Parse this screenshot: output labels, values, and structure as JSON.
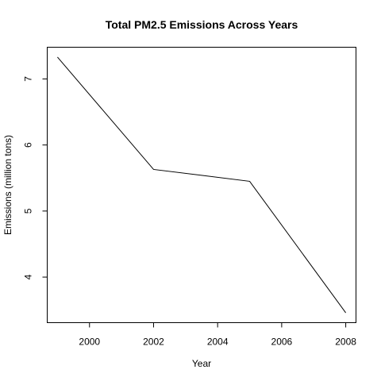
{
  "chart_data": {
    "type": "line",
    "title": "Total PM2.5 Emissions Across Years",
    "xlabel": "Year",
    "ylabel": "Emissions (million tons)",
    "x": [
      1999,
      2002,
      2005,
      2008
    ],
    "series": [
      {
        "values": [
          7.33,
          5.63,
          5.45,
          3.46
        ]
      }
    ],
    "xlim": [
      1998.68,
      2008.32
    ],
    "ylim": [
      3.31,
      7.48
    ],
    "xticks": [
      2000,
      2002,
      2004,
      2006,
      2008
    ],
    "yticks": [
      4,
      5,
      6,
      7
    ],
    "grid": false,
    "legend": "none",
    "line_color": "#000000"
  }
}
